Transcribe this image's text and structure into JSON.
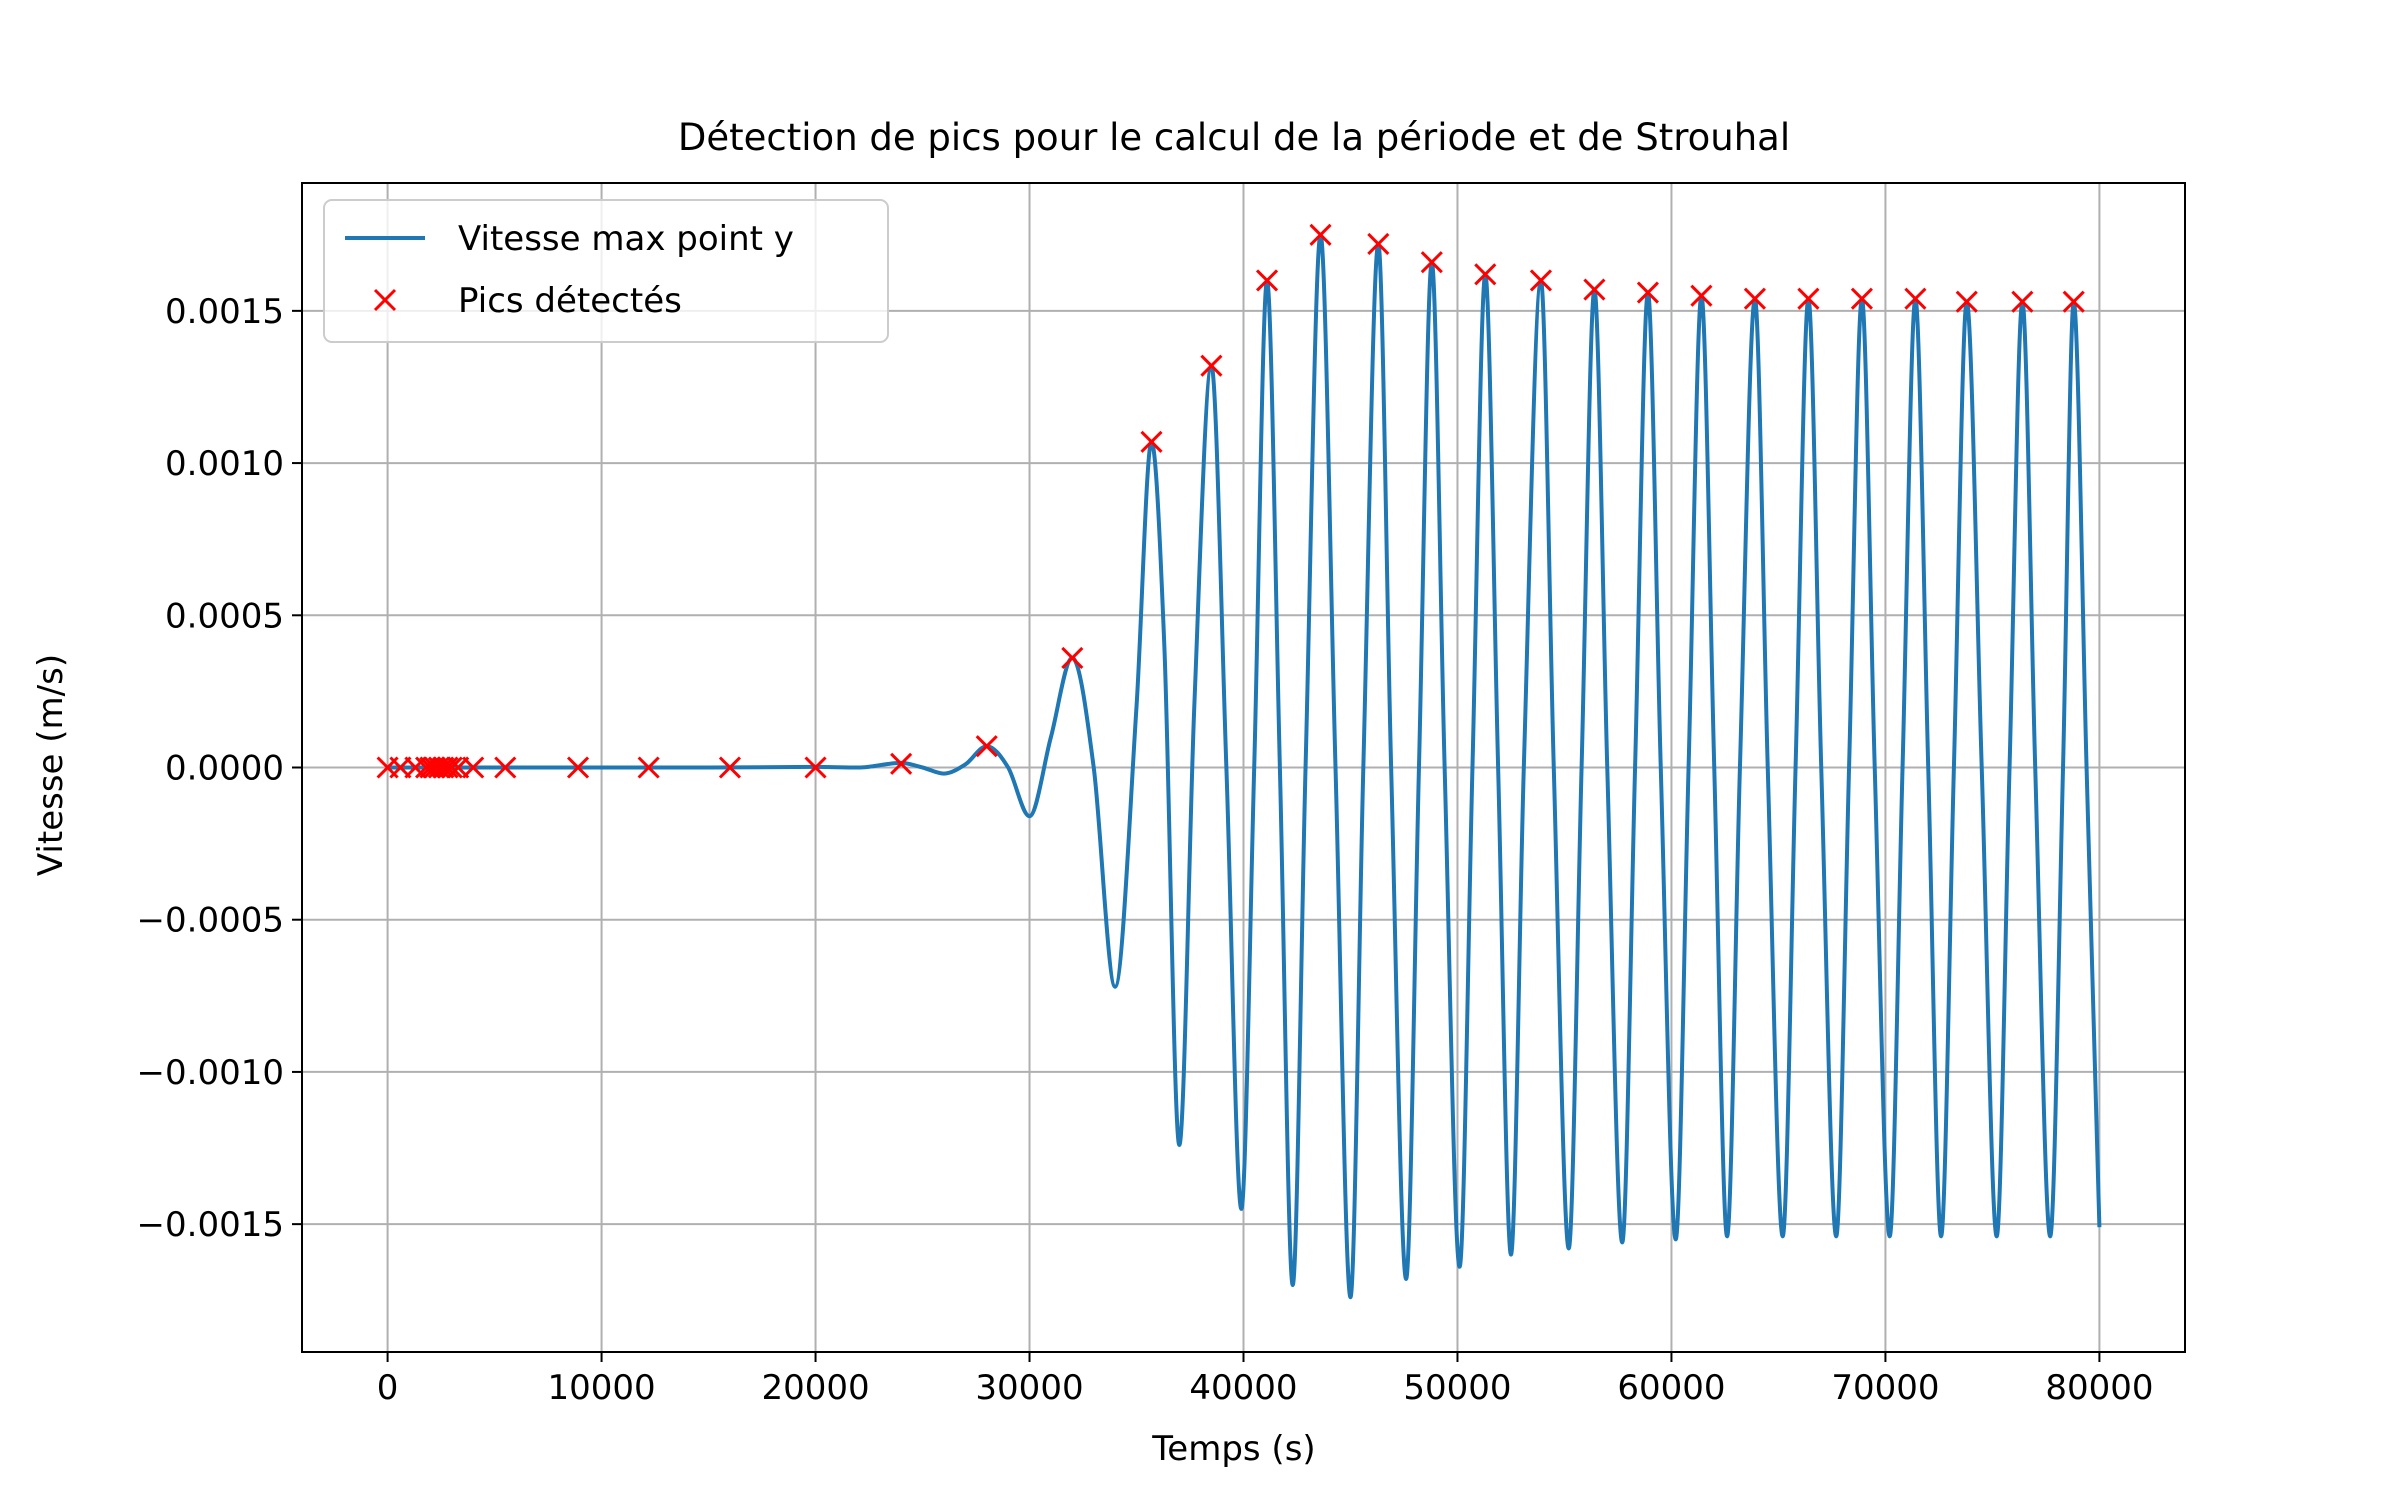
{
  "chart_data": {
    "type": "line",
    "title": "Détection de pics pour le calcul de la période et de Strouhal",
    "xlabel": "Temps (s)",
    "ylabel": "Vitesse (m/s)",
    "xlim": [
      -4000,
      84000
    ],
    "ylim": [
      -0.00192,
      0.00192
    ],
    "grid": true,
    "legend_position": "top-left",
    "x_ticks": [
      0,
      10000,
      20000,
      30000,
      40000,
      50000,
      60000,
      70000,
      80000
    ],
    "x_tick_labels": [
      "0",
      "10000",
      "20000",
      "30000",
      "40000",
      "50000",
      "60000",
      "70000",
      "80000"
    ],
    "y_ticks": [
      0.0015,
      0.001,
      0.0005,
      0.0,
      -0.0005,
      -0.001,
      -0.0015
    ],
    "y_tick_labels": [
      "0.0015",
      "0.0010",
      "0.0005",
      "0.0000",
      "−0.0005",
      "−0.0010",
      "−0.0015"
    ],
    "series": [
      {
        "name": "Vitesse max point y",
        "kind": "line",
        "color": "#1f77b4",
        "x": [
          0,
          2000,
          5000,
          10000,
          15000,
          20000,
          22000,
          24000,
          25000,
          26000,
          27000,
          28000,
          29000,
          30000,
          31000,
          32000,
          33000,
          34000,
          35000,
          35700,
          36300,
          37000,
          37700,
          38500,
          39200,
          39900,
          40500,
          41100,
          41700,
          42300,
          42900,
          43600,
          44300,
          45000,
          45600,
          46300,
          46900,
          47600,
          48200,
          48800,
          49400,
          50100,
          50700,
          51300,
          51900,
          52500,
          53100,
          53900,
          54500,
          55200,
          55800,
          56400,
          57000,
          57700,
          58300,
          58900,
          59500,
          60200,
          60800,
          61400,
          62000,
          62600,
          63200,
          63900,
          64500,
          65200,
          65800,
          66400,
          67000,
          67700,
          68300,
          68900,
          69500,
          70200,
          70800,
          71400,
          72000,
          72600,
          73200,
          73800,
          74500,
          75200,
          75800,
          76400,
          77000,
          77700,
          78300,
          78800,
          79400,
          80000
        ],
        "y": [
          0.0,
          0.0,
          0.0,
          0.0,
          0.0,
          2e-06,
          0.0,
          1.5e-05,
          0.0,
          -2e-05,
          1e-05,
          7e-05,
          0.0,
          -0.00016,
          0.0001,
          0.00036,
          0.0,
          -0.00072,
          0.0002,
          0.00107,
          0.0004,
          -0.00124,
          0.0002,
          0.00132,
          0.0,
          -0.00145,
          0.0,
          0.0016,
          0.0,
          -0.0017,
          0.0,
          0.00175,
          0.0,
          -0.00174,
          0.0,
          0.00172,
          0.0,
          -0.00168,
          0.0,
          0.00166,
          0.0,
          -0.00164,
          0.0,
          0.00162,
          0.0,
          -0.0016,
          0.0,
          0.0016,
          0.0,
          -0.00158,
          0.0,
          0.00157,
          0.0,
          -0.00156,
          0.0,
          0.00156,
          0.0,
          -0.00155,
          0.0,
          0.00155,
          0.0,
          -0.00154,
          0.0,
          0.00154,
          0.0,
          -0.00154,
          0.0,
          0.00154,
          0.0,
          -0.00154,
          0.0,
          0.00154,
          0.0,
          -0.00154,
          0.0,
          0.00154,
          0.0,
          -0.00154,
          0.0,
          0.00153,
          0.0,
          -0.00154,
          0.0,
          0.00153,
          0.0,
          -0.00154,
          0.0,
          0.00153,
          0.0,
          -0.00151
        ]
      },
      {
        "name": "Pics détectés",
        "kind": "marker",
        "color": "#ff0000",
        "x": [
          0,
          600,
          1300,
          1800,
          2000,
          2200,
          2400,
          2600,
          2800,
          3000,
          3300,
          4000,
          5500,
          8900,
          12200,
          16000,
          20000,
          24000,
          28000,
          32000,
          35700,
          38500,
          41100,
          43600,
          46300,
          48800,
          51300,
          53900,
          56400,
          58900,
          61400,
          63900,
          66400,
          68900,
          71400,
          73800,
          76400,
          78800
        ],
        "y": [
          0.0,
          0.0,
          0.0,
          0.0,
          0.0,
          0.0,
          0.0,
          0.0,
          0.0,
          0.0,
          0.0,
          0.0,
          0.0,
          0.0,
          0.0,
          0.0,
          0.0,
          1.2e-05,
          7e-05,
          0.00036,
          0.00107,
          0.00132,
          0.0016,
          0.00175,
          0.00172,
          0.00166,
          0.00162,
          0.0016,
          0.00157,
          0.00156,
          0.00155,
          0.00154,
          0.00154,
          0.00154,
          0.00154,
          0.00153,
          0.00153,
          0.00153
        ]
      }
    ]
  }
}
